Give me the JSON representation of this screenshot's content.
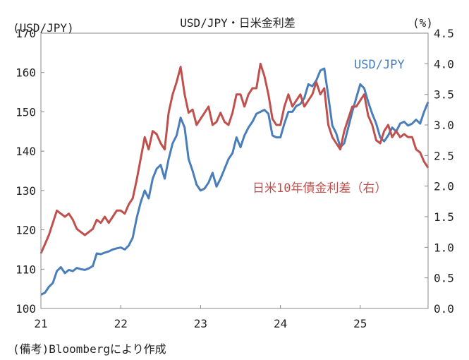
{
  "chart_data": {
    "type": "line",
    "title": "USD/JPY・日米金利差",
    "y_left_unit": "(USD/JPY)",
    "y_right_unit": "(%)",
    "x_ticks": [
      "21",
      "22",
      "23",
      "24",
      "25"
    ],
    "y_left_ticks": [
      "100",
      "110",
      "120",
      "130",
      "140",
      "150",
      "160",
      "170"
    ],
    "y_right_ticks": [
      "0.0",
      "0.5",
      "1.0",
      "1.5",
      "2.0",
      "2.5",
      "3.0",
      "3.5",
      "4.0",
      "4.5"
    ],
    "y_left_range": [
      100,
      170
    ],
    "y_right_range": [
      0.0,
      4.5
    ],
    "x_range": [
      2021.0,
      2025.85
    ],
    "grid": false,
    "series": [
      {
        "name": "USD/JPY",
        "axis": "left",
        "color": "#4a7ebb",
        "x": [
          2021.0,
          2021.05,
          2021.1,
          2021.15,
          2021.2,
          2021.25,
          2021.3,
          2021.35,
          2021.4,
          2021.45,
          2021.5,
          2021.55,
          2021.6,
          2021.65,
          2021.7,
          2021.75,
          2021.8,
          2021.85,
          2021.9,
          2021.95,
          2022.0,
          2022.05,
          2022.1,
          2022.15,
          2022.2,
          2022.25,
          2022.3,
          2022.35,
          2022.4,
          2022.45,
          2022.5,
          2022.55,
          2022.6,
          2022.65,
          2022.7,
          2022.75,
          2022.8,
          2022.85,
          2022.9,
          2022.95,
          2023.0,
          2023.05,
          2023.1,
          2023.15,
          2023.2,
          2023.25,
          2023.3,
          2023.35,
          2023.4,
          2023.45,
          2023.5,
          2023.55,
          2023.6,
          2023.65,
          2023.7,
          2023.75,
          2023.8,
          2023.85,
          2023.9,
          2023.95,
          2024.0,
          2024.05,
          2024.1,
          2024.15,
          2024.2,
          2024.25,
          2024.3,
          2024.35,
          2024.4,
          2024.45,
          2024.5,
          2024.55,
          2024.6,
          2024.65,
          2024.7,
          2024.75,
          2024.8,
          2024.85,
          2024.9,
          2024.95,
          2025.0,
          2025.05,
          2025.1,
          2025.15,
          2025.2,
          2025.25,
          2025.3,
          2025.35,
          2025.4,
          2025.45,
          2025.5,
          2025.55,
          2025.6,
          2025.65,
          2025.7,
          2025.75,
          2025.8,
          2025.85
        ],
        "values": [
          103.5,
          104.0,
          105.5,
          106.5,
          109.5,
          110.5,
          109.0,
          109.8,
          109.5,
          110.3,
          110.0,
          109.8,
          110.2,
          110.8,
          114.0,
          113.8,
          114.2,
          114.5,
          115.0,
          115.3,
          115.5,
          115.0,
          116.0,
          118.0,
          123.0,
          127.0,
          130.0,
          128.0,
          133.0,
          135.5,
          136.5,
          133.0,
          138.0,
          142.0,
          144.0,
          148.5,
          146.0,
          138.0,
          135.0,
          131.5,
          130.0,
          130.5,
          132.0,
          134.5,
          131.0,
          133.0,
          135.5,
          138.0,
          139.5,
          143.5,
          141.0,
          144.0,
          146.0,
          147.5,
          149.5,
          150.0,
          150.5,
          149.5,
          144.0,
          143.5,
          143.5,
          147.0,
          150.0,
          150.0,
          151.5,
          152.0,
          153.5,
          157.0,
          156.5,
          158.0,
          160.5,
          161.0,
          154.0,
          146.5,
          144.5,
          141.0,
          142.0,
          146.0,
          150.0,
          153.5,
          157.0,
          156.0,
          152.5,
          149.5,
          147.0,
          143.5,
          142.5,
          144.0,
          146.0,
          145.0,
          147.0,
          147.5,
          146.5,
          147.0,
          148.0,
          147.0,
          150.0,
          152.5
        ]
      },
      {
        "name": "日米10年債金利差（右）",
        "axis": "right",
        "color": "#c0504d",
        "x": [
          2021.0,
          2021.05,
          2021.1,
          2021.15,
          2021.2,
          2021.25,
          2021.3,
          2021.35,
          2021.4,
          2021.45,
          2021.5,
          2021.55,
          2021.6,
          2021.65,
          2021.7,
          2021.75,
          2021.8,
          2021.85,
          2021.9,
          2021.95,
          2022.0,
          2022.05,
          2022.1,
          2022.15,
          2022.2,
          2022.25,
          2022.3,
          2022.35,
          2022.4,
          2022.45,
          2022.5,
          2022.55,
          2022.6,
          2022.65,
          2022.7,
          2022.75,
          2022.8,
          2022.85,
          2022.9,
          2022.95,
          2023.0,
          2023.05,
          2023.1,
          2023.15,
          2023.2,
          2023.25,
          2023.3,
          2023.35,
          2023.4,
          2023.45,
          2023.5,
          2023.55,
          2023.6,
          2023.65,
          2023.7,
          2023.75,
          2023.8,
          2023.85,
          2023.9,
          2023.95,
          2024.0,
          2024.05,
          2024.1,
          2024.15,
          2024.2,
          2024.25,
          2024.3,
          2024.35,
          2024.4,
          2024.45,
          2024.5,
          2024.55,
          2024.6,
          2024.65,
          2024.7,
          2024.75,
          2024.8,
          2024.85,
          2024.9,
          2024.95,
          2025.0,
          2025.05,
          2025.1,
          2025.15,
          2025.2,
          2025.25,
          2025.3,
          2025.35,
          2025.4,
          2025.45,
          2025.5,
          2025.55,
          2025.6,
          2025.65,
          2025.7,
          2025.75,
          2025.8,
          2025.85
        ],
        "values": [
          0.9,
          1.05,
          1.2,
          1.4,
          1.6,
          1.55,
          1.5,
          1.55,
          1.45,
          1.3,
          1.25,
          1.2,
          1.25,
          1.3,
          1.45,
          1.4,
          1.5,
          1.4,
          1.5,
          1.6,
          1.6,
          1.55,
          1.7,
          1.8,
          2.1,
          2.45,
          2.8,
          2.6,
          2.9,
          2.85,
          2.7,
          2.6,
          3.2,
          3.5,
          3.7,
          3.95,
          3.5,
          3.2,
          3.25,
          3.0,
          3.1,
          3.2,
          3.3,
          3.0,
          3.05,
          3.2,
          3.05,
          3.0,
          3.2,
          3.5,
          3.5,
          3.3,
          3.5,
          3.6,
          3.6,
          4.0,
          3.8,
          3.5,
          3.1,
          3.0,
          3.0,
          3.3,
          3.5,
          3.3,
          3.4,
          3.5,
          3.3,
          3.4,
          3.5,
          3.7,
          3.5,
          3.6,
          3.0,
          2.8,
          2.7,
          2.6,
          2.9,
          3.1,
          3.3,
          3.3,
          3.4,
          3.5,
          3.15,
          3.0,
          2.75,
          2.7,
          2.9,
          3.0,
          2.8,
          2.9,
          2.8,
          2.85,
          2.8,
          2.8,
          2.6,
          2.55,
          2.4,
          2.3
        ]
      }
    ],
    "series_labels": [
      "USD/JPY",
      "日米10年債金利差（右）"
    ]
  },
  "footnote": "(備考)Bloombergにより作成"
}
